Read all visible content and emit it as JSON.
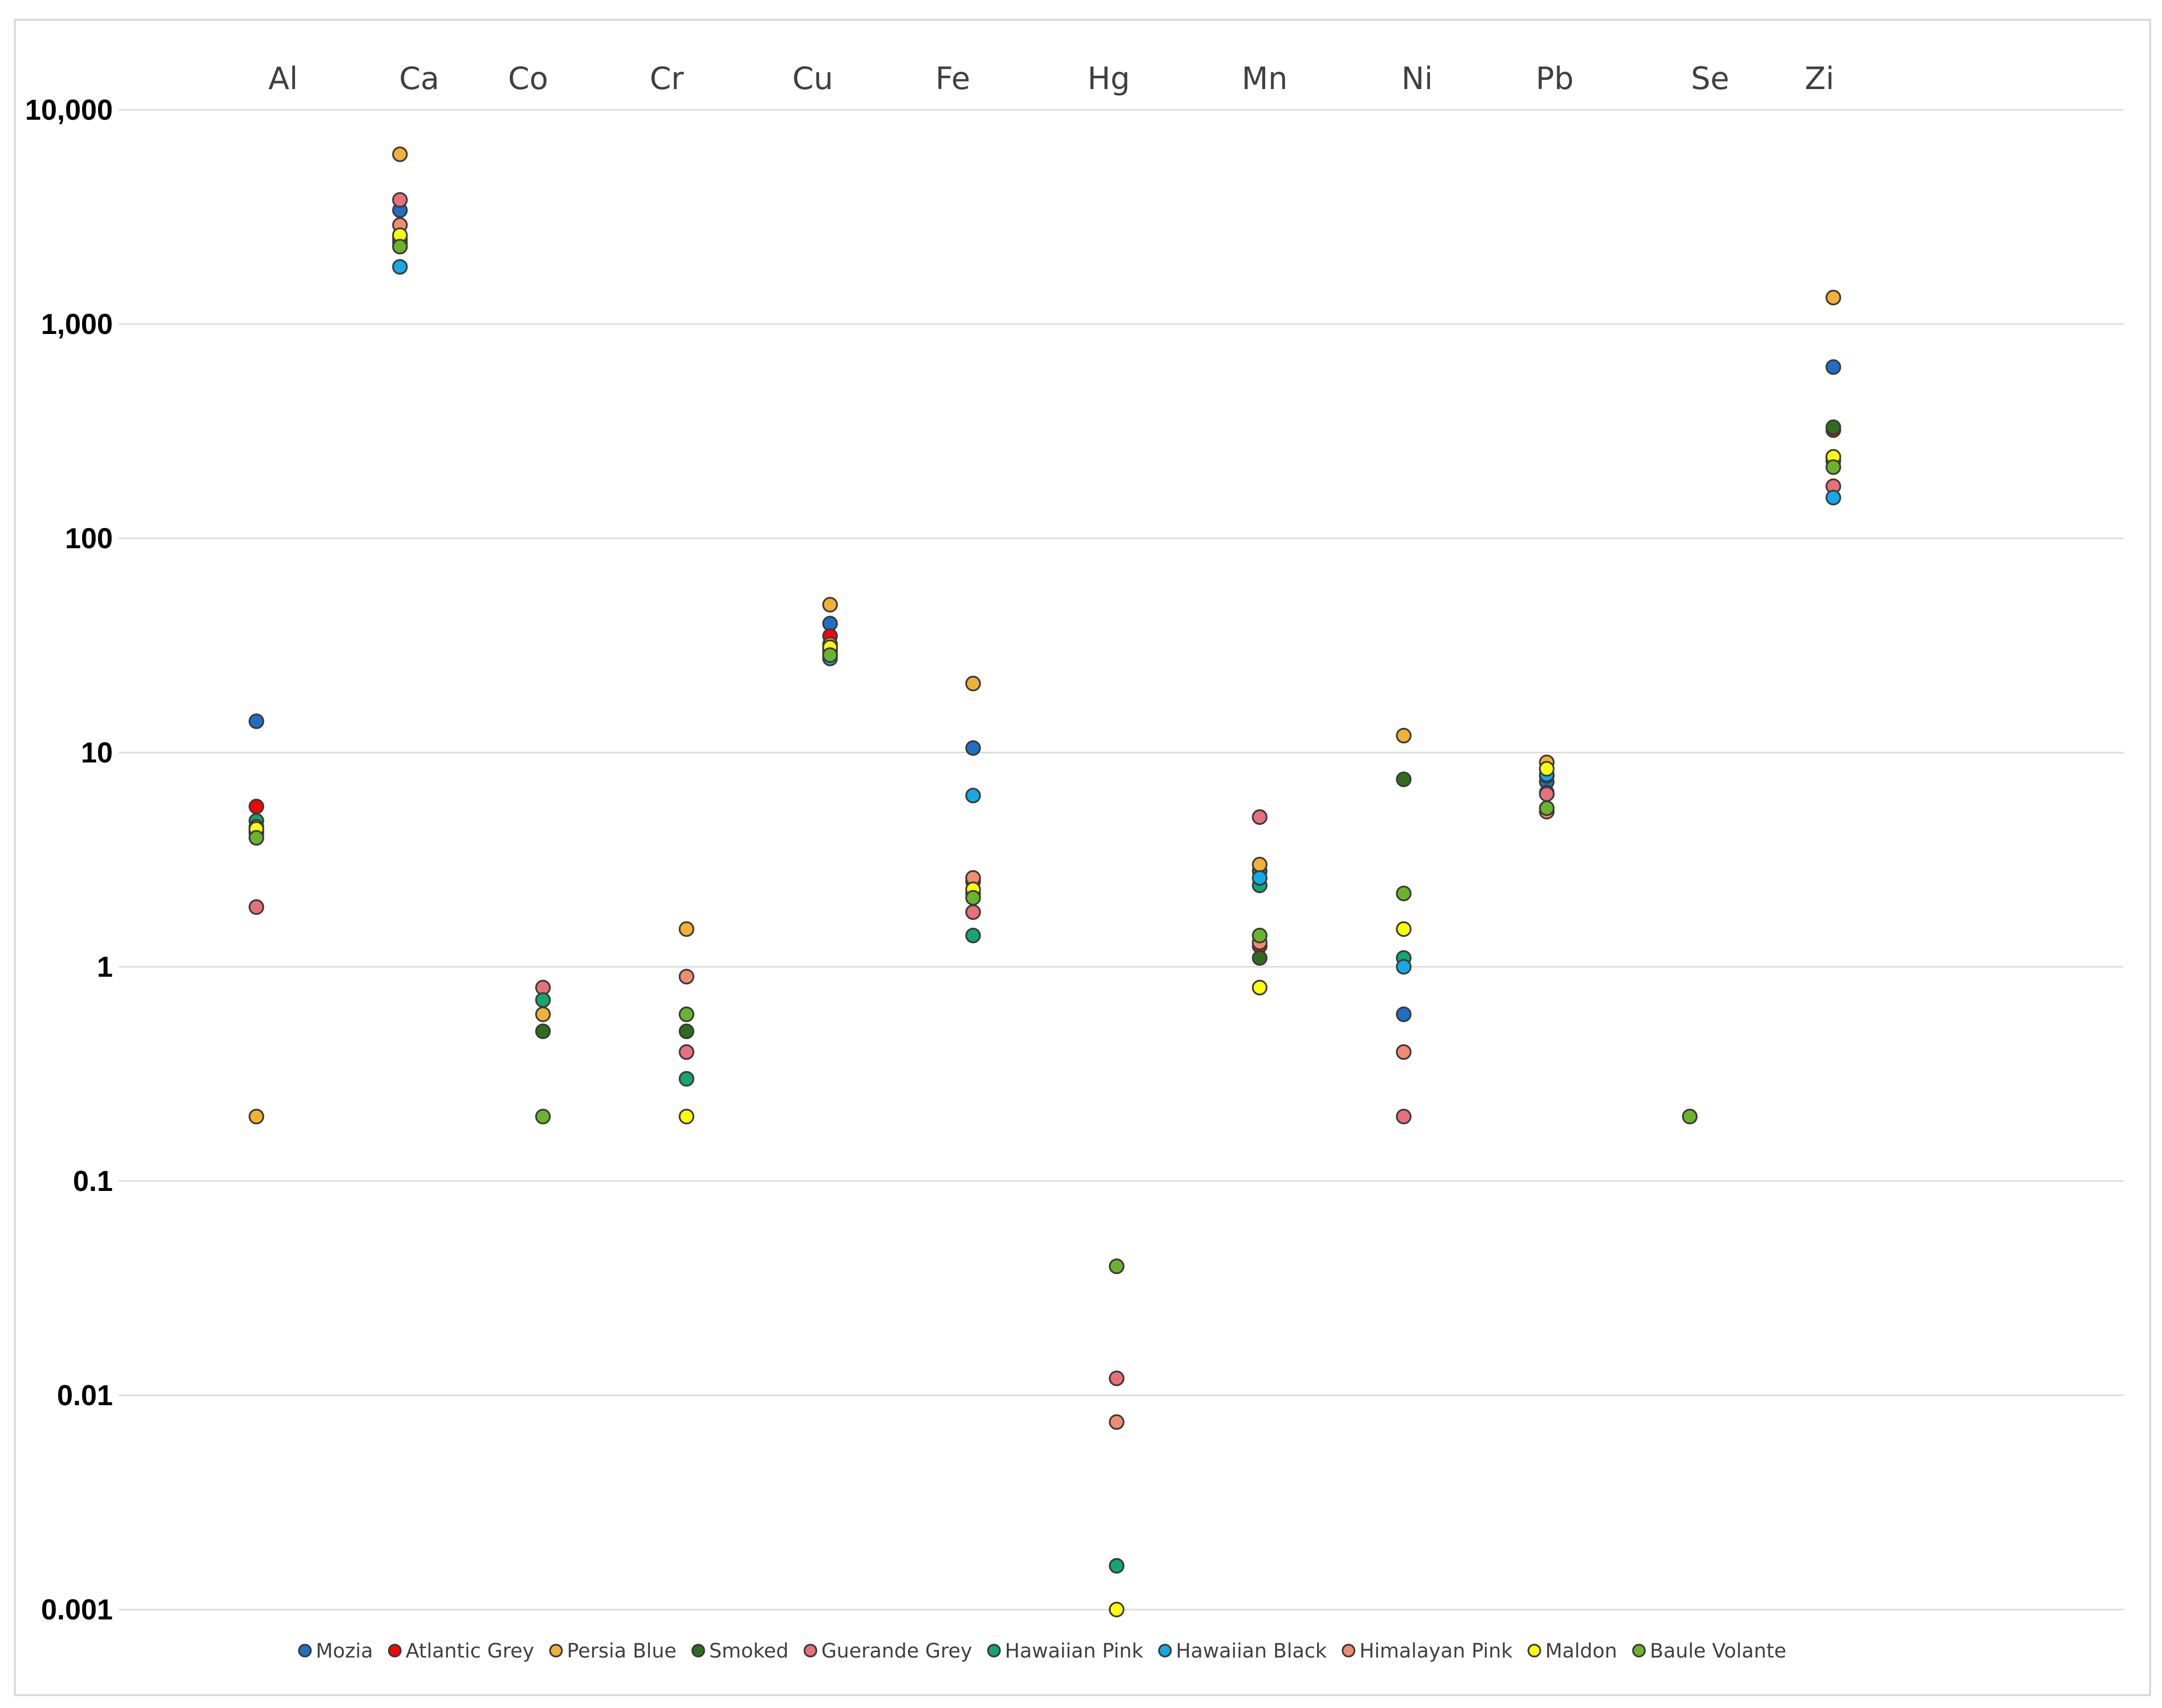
{
  "chart_data": {
    "type": "scatter",
    "title": "",
    "xlabel": "",
    "ylabel": "",
    "yscale": "log",
    "ylim": [
      0.001,
      10000
    ],
    "grid": true,
    "legend_position": "bottom",
    "categories": [
      "Al",
      "Ca",
      "Co",
      "Cr",
      "Cu",
      "Fe",
      "Hg",
      "Mn",
      "Ni",
      "Pb",
      "Se",
      "Zi"
    ],
    "y_ticks": [
      {
        "value": 10000,
        "label": "10,000"
      },
      {
        "value": 1000,
        "label": "1,000"
      },
      {
        "value": 100,
        "label": "100"
      },
      {
        "value": 10,
        "label": "10"
      },
      {
        "value": 1,
        "label": "1"
      },
      {
        "value": 0.1,
        "label": "0.1"
      },
      {
        "value": 0.01,
        "label": "0.01"
      },
      {
        "value": 0.001,
        "label": "0.001"
      }
    ],
    "series": [
      {
        "name": "Mozia",
        "color": "#1f6fc6",
        "values": [
          14,
          3400,
          null,
          null,
          40,
          10.5,
          null,
          2.8,
          0.6,
          7.3,
          null,
          630
        ]
      },
      {
        "name": "Atlantic Grey",
        "color": "#ff0000",
        "values": [
          5.6,
          2500,
          null,
          null,
          35,
          2.5,
          null,
          1.25,
          null,
          6.5,
          null,
          320
        ]
      },
      {
        "name": "Persia Blue",
        "color": "#f2b134",
        "values": [
          0.2,
          6200,
          0.6,
          1.5,
          49,
          21,
          null,
          3.0,
          12,
          9.0,
          null,
          1330
        ]
      },
      {
        "name": "Smoked",
        "color": "#2e6d1a",
        "values": [
          4.2,
          2400,
          0.5,
          0.5,
          30,
          2.2,
          null,
          1.1,
          7.5,
          7.8,
          null,
          330
        ]
      },
      {
        "name": "Guerande Grey",
        "color": "#e8707a",
        "values": [
          1.9,
          3800,
          0.8,
          0.4,
          28,
          1.8,
          0.012,
          5.0,
          0.2,
          6.4,
          null,
          175
        ]
      },
      {
        "name": "Hawaiian Pink",
        "color": "#13a66e",
        "values": [
          4.8,
          2300,
          0.7,
          0.3,
          29,
          1.4,
          0.0016,
          2.4,
          1.1,
          7.8,
          null,
          230
        ]
      },
      {
        "name": "Hawaiian Black",
        "color": "#14a9e8",
        "values": [
          4.3,
          1850,
          null,
          null,
          27.5,
          6.3,
          null,
          2.6,
          1.0,
          7.9,
          null,
          155
        ]
      },
      {
        "name": "Himalayan Pink",
        "color": "#f08c72",
        "values": [
          4.5,
          2900,
          null,
          0.9,
          32,
          2.6,
          0.0075,
          1.3,
          0.4,
          5.3,
          null,
          240
        ]
      },
      {
        "name": "Maldon",
        "color": "#ffff00",
        "values": [
          4.4,
          2600,
          null,
          0.2,
          31,
          2.3,
          0.001,
          0.8,
          1.5,
          8.4,
          null,
          240
        ]
      },
      {
        "name": "Baule Volante",
        "color": "#6ab42d",
        "values": [
          4.0,
          2300,
          0.2,
          0.6,
          28.5,
          2.1,
          0.04,
          1.4,
          2.2,
          5.5,
          0.2,
          215
        ]
      }
    ]
  }
}
